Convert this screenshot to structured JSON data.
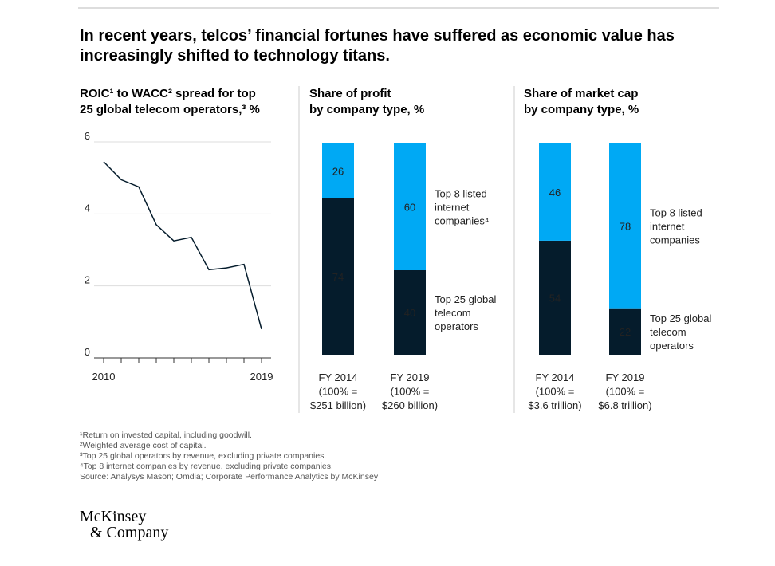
{
  "title": [
    "In recent years, telcos’ financial fortunes have suffered as economic value has",
    "increasingly shifted to technology titans."
  ],
  "chart_data": [
    {
      "type": "line",
      "title": [
        "ROIC¹ to WACC² spread for top",
        "25 global telecom operators,³ %"
      ],
      "x": [
        2010,
        2011,
        2012,
        2013,
        2014,
        2015,
        2016,
        2017,
        2018,
        2019
      ],
      "values": [
        5.45,
        4.95,
        4.75,
        3.7,
        3.25,
        3.35,
        2.45,
        2.5,
        2.6,
        0.8
      ],
      "color": "#051c2c",
      "xlim": [
        2010,
        2019
      ],
      "xticks": [
        2010,
        2019
      ],
      "ylim": [
        0,
        6
      ],
      "yticks": [
        0,
        2,
        4,
        6
      ],
      "grid": true
    },
    {
      "type": "stacked_bar",
      "title": [
        "Share of profit",
        "by company type, %"
      ],
      "categories": [
        [
          "FY 2014",
          "(100% =",
          "$251 billion)"
        ],
        [
          "FY 2019",
          "(100% =",
          "$260 billion)"
        ]
      ],
      "series": [
        {
          "name": [
            "Top 25 global",
            "telecom",
            "operators"
          ],
          "color": "#051c2c",
          "values": [
            74,
            40
          ]
        },
        {
          "name": [
            "Top 8 listed",
            "internet",
            "companies⁴"
          ],
          "color": "#00a9f4",
          "values": [
            26,
            60
          ]
        }
      ]
    },
    {
      "type": "stacked_bar",
      "title": [
        "Share of market cap",
        "by company type, %"
      ],
      "categories": [
        [
          "FY 2014",
          "(100% =",
          "$3.6 trillion)"
        ],
        [
          "FY 2019",
          "(100% =",
          "$6.8 trillion)"
        ]
      ],
      "series": [
        {
          "name": [
            "Top 25 global",
            "telecom",
            "operators"
          ],
          "color": "#051c2c",
          "values": [
            54,
            22
          ]
        },
        {
          "name": [
            "Top 8 listed",
            "internet",
            "companies"
          ],
          "color": "#00a9f4",
          "values": [
            46,
            78
          ]
        }
      ]
    }
  ],
  "footnotes": [
    "¹Return on invested capital, including goodwill.",
    "²Weighted average cost of capital.",
    "³Top 25 global operators by revenue, excluding private companies.",
    "⁴Top 8 internet companies by revenue, excluding private companies.",
    " Source: Analysys Mason; Omdia; Corporate Performance Analytics by McKinsey"
  ],
  "logo": [
    "McKinsey",
    "& Company"
  ]
}
